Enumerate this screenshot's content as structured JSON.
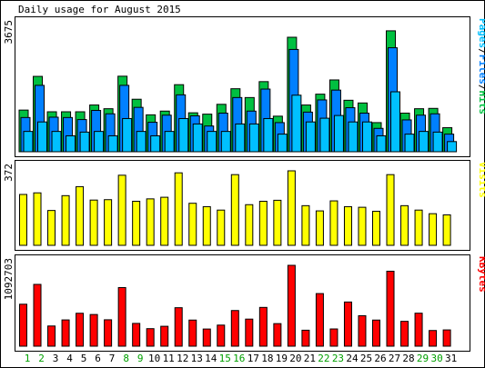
{
  "chart_data": [
    {
      "type": "bar",
      "title": "Daily usage for August 2015",
      "categories": [
        "1",
        "2",
        "3",
        "4",
        "5",
        "6",
        "7",
        "8",
        "9",
        "10",
        "11",
        "12",
        "13",
        "14",
        "15",
        "16",
        "17",
        "18",
        "19",
        "20",
        "21",
        "22",
        "23",
        "24",
        "25",
        "26",
        "27",
        "28",
        "29",
        "30",
        "31"
      ],
      "weekend_days": [
        "1",
        "2",
        "8",
        "9",
        "15",
        "16",
        "22",
        "23",
        "29",
        "30"
      ],
      "panel_label": "Pages/Files/Hits",
      "ymax_label": "3675",
      "ylim": [
        0,
        3675
      ],
      "series": [
        {
          "name": "Hits",
          "color": "#00c040",
          "values": [
            1230,
            2225,
            1180,
            1180,
            1180,
            1380,
            1270,
            2230,
            1550,
            1090,
            1200,
            1980,
            1150,
            1110,
            1400,
            1860,
            1600,
            2070,
            1050,
            3380,
            1380,
            1700,
            2120,
            1520,
            1440,
            860,
            3570,
            1140,
            1270,
            1280,
            710
          ]
        },
        {
          "name": "Files",
          "color": "#0080ff",
          "values": [
            1010,
            1960,
            1020,
            1010,
            950,
            1220,
            1120,
            1960,
            1310,
            870,
            1080,
            1680,
            1060,
            760,
            1140,
            1600,
            1200,
            1850,
            860,
            3020,
            1170,
            1530,
            1820,
            1300,
            1140,
            690,
            3070,
            940,
            1080,
            1120,
            520
          ]
        },
        {
          "name": "Pages",
          "color": "#00c0ff",
          "values": [
            600,
            880,
            600,
            470,
            580,
            600,
            470,
            980,
            600,
            470,
            600,
            980,
            820,
            600,
            600,
            820,
            820,
            980,
            520,
            1670,
            880,
            990,
            1070,
            880,
            880,
            470,
            1770,
            520,
            600,
            580,
            300
          ]
        }
      ],
      "legend": [
        "Pages",
        "/",
        "Files",
        "/",
        "Hits"
      ],
      "legend_colors": [
        "#00c0ff",
        "#000000",
        "#0080ff",
        "#000000",
        "#00c040"
      ]
    },
    {
      "type": "bar",
      "panel_label": "Visits",
      "ymax_label": "372",
      "ylim": [
        0,
        372
      ],
      "series": [
        {
          "name": "Visits",
          "color": "#ffff00",
          "values": [
            254,
            262,
            174,
            248,
            293,
            226,
            228,
            350,
            220,
            232,
            240,
            362,
            210,
            193,
            176,
            353,
            203,
            220,
            225,
            372,
            198,
            172,
            222,
            193,
            190,
            170,
            353,
            198,
            176,
            158,
            152
          ]
        }
      ]
    },
    {
      "type": "bar",
      "panel_label": "KBytes",
      "ymax_label": "1092703",
      "ylim": [
        0,
        1092703
      ],
      "series": [
        {
          "name": "KBytes",
          "color": "#ff0000",
          "values": [
            567000,
            835000,
            273000,
            355000,
            445000,
            428000,
            357000,
            792000,
            308000,
            237000,
            269000,
            520000,
            353000,
            232000,
            285000,
            482000,
            366000,
            524000,
            305000,
            1092703,
            216000,
            711000,
            233000,
            597000,
            412000,
            353000,
            1013000,
            336000,
            446000,
            212000,
            220000
          ]
        }
      ]
    }
  ]
}
